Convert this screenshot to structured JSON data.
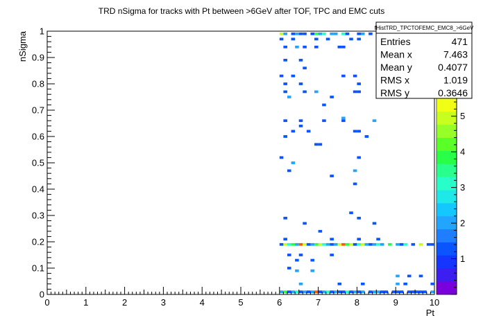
{
  "chart_data": {
    "type": "heatmap",
    "title": "TRD nSigma for tracks with Pt between >6GeV after TOF, TPC and EMC cuts",
    "xlabel": "Pt",
    "ylabel": "nSigma",
    "xlim": [
      0,
      10
    ],
    "ylim": [
      0,
      1
    ],
    "zlim": [
      0,
      5.5
    ],
    "x_ticks": [
      "0",
      "1",
      "2",
      "3",
      "4",
      "5",
      "6",
      "7",
      "8",
      "9",
      "10"
    ],
    "y_ticks": [
      "0",
      "0.1",
      "0.2",
      "0.3",
      "0.4",
      "0.5",
      "0.6",
      "0.7",
      "0.8",
      "0.9",
      "1"
    ],
    "z_ticks": [
      "1",
      "2",
      "3",
      "4",
      "5"
    ],
    "x_bin_width": 0.1,
    "y_bin_width": 0.01,
    "cells": [
      {
        "x": 6.0,
        "y": 0.99,
        "z": 5
      },
      {
        "x": 6.1,
        "y": 0.99,
        "z": 2
      },
      {
        "x": 6.3,
        "y": 0.99,
        "z": 1
      },
      {
        "x": 6.4,
        "y": 0.99,
        "z": 2
      },
      {
        "x": 6.5,
        "y": 0.99,
        "z": 1
      },
      {
        "x": 6.6,
        "y": 0.99,
        "z": 1
      },
      {
        "x": 6.8,
        "y": 0.99,
        "z": 1
      },
      {
        "x": 6.9,
        "y": 0.99,
        "z": 4
      },
      {
        "x": 7.0,
        "y": 0.99,
        "z": 2
      },
      {
        "x": 7.1,
        "y": 0.99,
        "z": 3
      },
      {
        "x": 7.3,
        "y": 0.99,
        "z": 2
      },
      {
        "x": 7.4,
        "y": 0.99,
        "z": 2
      },
      {
        "x": 7.6,
        "y": 0.99,
        "z": 3
      },
      {
        "x": 7.7,
        "y": 0.99,
        "z": 1
      },
      {
        "x": 8.0,
        "y": 0.99,
        "z": 1
      },
      {
        "x": 8.1,
        "y": 0.99,
        "z": 2
      },
      {
        "x": 8.3,
        "y": 0.99,
        "z": 1
      },
      {
        "x": 8.5,
        "y": 0.99,
        "z": 1
      },
      {
        "x": 6.0,
        "y": 0.97,
        "z": 1
      },
      {
        "x": 6.3,
        "y": 0.97,
        "z": 1
      },
      {
        "x": 6.9,
        "y": 0.97,
        "z": 1
      },
      {
        "x": 7.2,
        "y": 0.97,
        "z": 1
      },
      {
        "x": 7.8,
        "y": 0.97,
        "z": 1
      },
      {
        "x": 8.0,
        "y": 0.97,
        "z": 1
      },
      {
        "x": 6.1,
        "y": 0.94,
        "z": 1
      },
      {
        "x": 6.4,
        "y": 0.94,
        "z": 2
      },
      {
        "x": 6.6,
        "y": 0.94,
        "z": 1
      },
      {
        "x": 6.9,
        "y": 0.94,
        "z": 1
      },
      {
        "x": 7.5,
        "y": 0.94,
        "z": 1
      },
      {
        "x": 7.6,
        "y": 0.94,
        "z": 1
      },
      {
        "x": 6.1,
        "y": 0.89,
        "z": 1
      },
      {
        "x": 6.5,
        "y": 0.89,
        "z": 1
      },
      {
        "x": 6.6,
        "y": 0.86,
        "z": 1
      },
      {
        "x": 6.0,
        "y": 0.83,
        "z": 1
      },
      {
        "x": 6.3,
        "y": 0.83,
        "z": 1
      },
      {
        "x": 7.6,
        "y": 0.83,
        "z": 1
      },
      {
        "x": 7.9,
        "y": 0.83,
        "z": 1
      },
      {
        "x": 6.1,
        "y": 0.8,
        "z": 1
      },
      {
        "x": 6.5,
        "y": 0.8,
        "z": 1
      },
      {
        "x": 8.0,
        "y": 0.8,
        "z": 1
      },
      {
        "x": 6.1,
        "y": 0.77,
        "z": 1
      },
      {
        "x": 6.6,
        "y": 0.77,
        "z": 1
      },
      {
        "x": 6.9,
        "y": 0.77,
        "z": 2
      },
      {
        "x": 7.9,
        "y": 0.77,
        "z": 1
      },
      {
        "x": 8.0,
        "y": 0.77,
        "z": 1
      },
      {
        "x": 6.2,
        "y": 0.75,
        "z": 2
      },
      {
        "x": 7.3,
        "y": 0.75,
        "z": 1
      },
      {
        "x": 7.1,
        "y": 0.72,
        "z": 1
      },
      {
        "x": 7.6,
        "y": 0.67,
        "z": 2
      },
      {
        "x": 6.1,
        "y": 0.66,
        "z": 1
      },
      {
        "x": 6.5,
        "y": 0.66,
        "z": 1
      },
      {
        "x": 7.1,
        "y": 0.66,
        "z": 1
      },
      {
        "x": 7.6,
        "y": 0.66,
        "z": 1
      },
      {
        "x": 8.4,
        "y": 0.66,
        "z": 2
      },
      {
        "x": 6.5,
        "y": 0.64,
        "z": 1
      },
      {
        "x": 6.3,
        "y": 0.62,
        "z": 1
      },
      {
        "x": 6.7,
        "y": 0.62,
        "z": 1
      },
      {
        "x": 7.9,
        "y": 0.62,
        "z": 1
      },
      {
        "x": 8.0,
        "y": 0.62,
        "z": 1
      },
      {
        "x": 6.1,
        "y": 0.6,
        "z": 1
      },
      {
        "x": 8.2,
        "y": 0.6,
        "z": 1
      },
      {
        "x": 6.9,
        "y": 0.57,
        "z": 1
      },
      {
        "x": 7.0,
        "y": 0.57,
        "z": 1
      },
      {
        "x": 6.0,
        "y": 0.52,
        "z": 1
      },
      {
        "x": 8.0,
        "y": 0.52,
        "z": 1
      },
      {
        "x": 6.3,
        "y": 0.5,
        "z": 2
      },
      {
        "x": 6.2,
        "y": 0.47,
        "z": 1
      },
      {
        "x": 7.9,
        "y": 0.47,
        "z": 2
      },
      {
        "x": 7.3,
        "y": 0.45,
        "z": 1
      },
      {
        "x": 7.9,
        "y": 0.42,
        "z": 1
      },
      {
        "x": 7.8,
        "y": 0.31,
        "z": 1
      },
      {
        "x": 6.1,
        "y": 0.29,
        "z": 1
      },
      {
        "x": 8.0,
        "y": 0.29,
        "z": 1
      },
      {
        "x": 6.6,
        "y": 0.27,
        "z": 1
      },
      {
        "x": 8.4,
        "y": 0.27,
        "z": 1
      },
      {
        "x": 7.0,
        "y": 0.24,
        "z": 1
      },
      {
        "x": 6.1,
        "y": 0.21,
        "z": 1
      },
      {
        "x": 7.3,
        "y": 0.21,
        "z": 1
      },
      {
        "x": 8.0,
        "y": 0.21,
        "z": 1
      },
      {
        "x": 8.5,
        "y": 0.21,
        "z": 1
      },
      {
        "x": 6.0,
        "y": 0.19,
        "z": 1
      },
      {
        "x": 6.1,
        "y": 0.19,
        "z": 5
      },
      {
        "x": 6.2,
        "y": 0.19,
        "z": 3
      },
      {
        "x": 6.3,
        "y": 0.19,
        "z": 4
      },
      {
        "x": 6.4,
        "y": 0.19,
        "z": 2
      },
      {
        "x": 6.5,
        "y": 0.19,
        "z": 6
      },
      {
        "x": 6.6,
        "y": 0.19,
        "z": 5
      },
      {
        "x": 6.7,
        "y": 0.19,
        "z": 1
      },
      {
        "x": 6.8,
        "y": 0.19,
        "z": 2
      },
      {
        "x": 6.9,
        "y": 0.19,
        "z": 4
      },
      {
        "x": 7.0,
        "y": 0.19,
        "z": 5
      },
      {
        "x": 7.1,
        "y": 0.19,
        "z": 3
      },
      {
        "x": 7.2,
        "y": 0.19,
        "z": 2
      },
      {
        "x": 7.3,
        "y": 0.19,
        "z": 1
      },
      {
        "x": 7.4,
        "y": 0.19,
        "z": 2
      },
      {
        "x": 7.5,
        "y": 0.19,
        "z": 5
      },
      {
        "x": 7.6,
        "y": 0.19,
        "z": 6
      },
      {
        "x": 7.7,
        "y": 0.19,
        "z": 4
      },
      {
        "x": 7.8,
        "y": 0.19,
        "z": 5
      },
      {
        "x": 7.9,
        "y": 0.19,
        "z": 1
      },
      {
        "x": 8.0,
        "y": 0.19,
        "z": 3
      },
      {
        "x": 8.1,
        "y": 0.19,
        "z": 5
      },
      {
        "x": 8.2,
        "y": 0.19,
        "z": 2
      },
      {
        "x": 8.3,
        "y": 0.19,
        "z": 1
      },
      {
        "x": 8.4,
        "y": 0.19,
        "z": 2
      },
      {
        "x": 8.5,
        "y": 0.19,
        "z": 3
      },
      {
        "x": 8.6,
        "y": 0.19,
        "z": 2
      },
      {
        "x": 8.8,
        "y": 0.19,
        "z": 4
      },
      {
        "x": 9.0,
        "y": 0.19,
        "z": 2
      },
      {
        "x": 9.1,
        "y": 0.19,
        "z": 1
      },
      {
        "x": 9.2,
        "y": 0.19,
        "z": 3
      },
      {
        "x": 9.4,
        "y": 0.19,
        "z": 1
      },
      {
        "x": 9.6,
        "y": 0.19,
        "z": 5
      },
      {
        "x": 9.8,
        "y": 0.19,
        "z": 1
      },
      {
        "x": 9.9,
        "y": 0.19,
        "z": 1
      },
      {
        "x": 6.2,
        "y": 0.15,
        "z": 1
      },
      {
        "x": 6.5,
        "y": 0.15,
        "z": 1
      },
      {
        "x": 7.3,
        "y": 0.15,
        "z": 1
      },
      {
        "x": 6.4,
        "y": 0.13,
        "z": 1
      },
      {
        "x": 6.8,
        "y": 0.13,
        "z": 1
      },
      {
        "x": 6.2,
        "y": 0.1,
        "z": 1
      },
      {
        "x": 6.4,
        "y": 0.09,
        "z": 2
      },
      {
        "x": 6.8,
        "y": 0.09,
        "z": 2
      },
      {
        "x": 9.0,
        "y": 0.07,
        "z": 2
      },
      {
        "x": 9.3,
        "y": 0.07,
        "z": 1
      },
      {
        "x": 9.6,
        "y": 0.07,
        "z": 1
      },
      {
        "x": 6.5,
        "y": 0.04,
        "z": 2
      },
      {
        "x": 7.5,
        "y": 0.04,
        "z": 1
      },
      {
        "x": 8.1,
        "y": 0.04,
        "z": 1
      },
      {
        "x": 9.0,
        "y": 0.04,
        "z": 2
      },
      {
        "x": 9.2,
        "y": 0.04,
        "z": 1
      },
      {
        "x": 9.9,
        "y": 0.04,
        "z": 1
      },
      {
        "x": 6.0,
        "y": 0.01,
        "z": 2
      },
      {
        "x": 6.1,
        "y": 0.01,
        "z": 4
      },
      {
        "x": 6.2,
        "y": 0.01,
        "z": 1
      },
      {
        "x": 6.3,
        "y": 0.01,
        "z": 2
      },
      {
        "x": 6.4,
        "y": 0.01,
        "z": 3
      },
      {
        "x": 6.5,
        "y": 0.01,
        "z": 1
      },
      {
        "x": 6.6,
        "y": 0.01,
        "z": 2
      },
      {
        "x": 6.7,
        "y": 0.01,
        "z": 1
      },
      {
        "x": 6.8,
        "y": 0.01,
        "z": 2
      },
      {
        "x": 6.9,
        "y": 0.01,
        "z": 6
      },
      {
        "x": 7.0,
        "y": 0.01,
        "z": 1
      },
      {
        "x": 7.1,
        "y": 0.01,
        "z": 2
      },
      {
        "x": 7.2,
        "y": 0.01,
        "z": 3
      },
      {
        "x": 7.3,
        "y": 0.01,
        "z": 1
      },
      {
        "x": 7.4,
        "y": 0.01,
        "z": 2
      },
      {
        "x": 7.5,
        "y": 0.01,
        "z": 1
      },
      {
        "x": 7.6,
        "y": 0.01,
        "z": 1
      },
      {
        "x": 7.7,
        "y": 0.01,
        "z": 3
      },
      {
        "x": 7.8,
        "y": 0.01,
        "z": 1
      },
      {
        "x": 7.9,
        "y": 0.01,
        "z": 2
      },
      {
        "x": 8.0,
        "y": 0.01,
        "z": 1
      },
      {
        "x": 8.1,
        "y": 0.01,
        "z": 2
      },
      {
        "x": 8.3,
        "y": 0.01,
        "z": 1
      },
      {
        "x": 8.4,
        "y": 0.01,
        "z": 2
      },
      {
        "x": 8.5,
        "y": 0.01,
        "z": 2
      },
      {
        "x": 8.6,
        "y": 0.01,
        "z": 1
      },
      {
        "x": 8.7,
        "y": 0.01,
        "z": 1
      },
      {
        "x": 8.9,
        "y": 0.01,
        "z": 1
      },
      {
        "x": 9.0,
        "y": 0.01,
        "z": 1
      },
      {
        "x": 9.1,
        "y": 0.01,
        "z": 1
      },
      {
        "x": 9.3,
        "y": 0.01,
        "z": 1
      },
      {
        "x": 9.4,
        "y": 0.01,
        "z": 1
      },
      {
        "x": 9.5,
        "y": 0.01,
        "z": 1
      },
      {
        "x": 9.6,
        "y": 0.01,
        "z": 1
      },
      {
        "x": 9.7,
        "y": 0.01,
        "z": 1
      },
      {
        "x": 9.9,
        "y": 0.01,
        "z": 2
      }
    ],
    "stats": {
      "name": "fHistTRD_TPCTOFEMC_EMC8_>6GeV",
      "rows": [
        {
          "label": "Entries",
          "value": "471"
        },
        {
          "label": "Mean x",
          "value": "7.463"
        },
        {
          "label": "Mean y",
          "value": "0.4077"
        },
        {
          "label": "RMS x",
          "value": "1.019"
        },
        {
          "label": "RMS y",
          "value": "0.3646"
        }
      ]
    },
    "palette": [
      "#7a00dc",
      "#3d1ef0",
      "#1436ff",
      "#0a55ff",
      "#1f7dff",
      "#21a5ff",
      "#14c8ff",
      "#1ee8e8",
      "#28ffc8",
      "#28ff8c",
      "#28ff46",
      "#5aff28",
      "#96ff28",
      "#c8ff1e",
      "#f0ff14"
    ],
    "hot_colors": {
      "6": "#ff5a00"
    },
    "grid": false,
    "legend_placement": "right"
  }
}
